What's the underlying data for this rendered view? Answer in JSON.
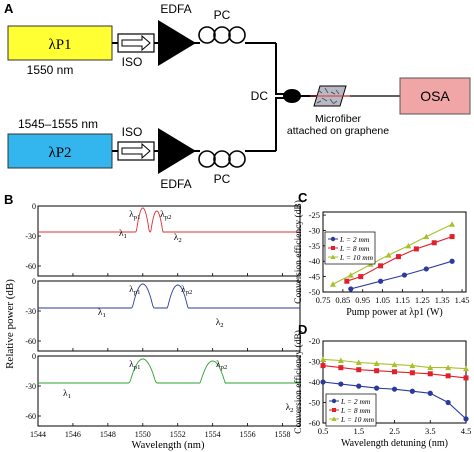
{
  "panel_a": {
    "label": "A",
    "laser1": {
      "name": "λP1",
      "wavelength": "1550 nm",
      "color": "#ffff33"
    },
    "laser2": {
      "name": "λP2",
      "wavelength": "1545–1555 nm",
      "color": "#33b6ee"
    },
    "iso_label": "ISO",
    "edfa_label": "EDFA",
    "pc_label": "PC",
    "dc_label": "DC",
    "microfiber_label_1": "Microfiber",
    "microfiber_label_2": "attached on graphene",
    "osa_label": "OSA",
    "osa_color": "#f0a6a6"
  },
  "panel_b": {
    "label": "B",
    "ylabel": "Relative power (dB)",
    "xlabel": "Wavelength (nm)",
    "xticks": [
      "1544",
      "1546",
      "1548",
      "1550",
      "1552",
      "1554",
      "1556",
      "1558"
    ],
    "yticks": [
      "0",
      "-30",
      "-60"
    ],
    "xlim": [
      1544,
      1559
    ],
    "ylim": [
      -70,
      0
    ],
    "spectra": [
      {
        "color": "#e03030",
        "peaks": [
          {
            "x": 1549.2,
            "y": -34,
            "w": 0.12,
            "label": "λ1"
          },
          {
            "x": 1550.0,
            "y": -2,
            "w": 0.1,
            "label": "λp1"
          },
          {
            "x": 1550.8,
            "y": -5,
            "w": 0.1,
            "label": "λp2"
          },
          {
            "x": 1551.6,
            "y": -38,
            "w": 0.12,
            "label": "λ2"
          }
        ]
      },
      {
        "color": "#2a3a9e",
        "peaks": [
          {
            "x": 1548.0,
            "y": -38,
            "w": 0.18,
            "label": "λ1"
          },
          {
            "x": 1550.0,
            "y": -3,
            "w": 0.16,
            "label": "λp1"
          },
          {
            "x": 1552.0,
            "y": -4,
            "w": 0.16,
            "label": "λp2"
          },
          {
            "x": 1554.0,
            "y": -48,
            "w": 0.18,
            "label": "λ2"
          }
        ]
      },
      {
        "color": "#2ca02c",
        "peaks": [
          {
            "x": 1546.0,
            "y": -44,
            "w": 0.22,
            "label": "λ1"
          },
          {
            "x": 1550.0,
            "y": -3,
            "w": 0.2,
            "label": "λp1"
          },
          {
            "x": 1554.0,
            "y": -5,
            "w": 0.2,
            "label": "λp2"
          },
          {
            "x": 1558.0,
            "y": -58,
            "w": 0.22,
            "label": "λ2"
          }
        ]
      }
    ]
  },
  "chart_data": [
    {
      "type": "line",
      "panel": "C",
      "xlabel": "Pump power at λp1 (W)",
      "ylabel": "Conversion efficiency (dB)",
      "xticks": [
        0.75,
        0.85,
        0.95,
        1.05,
        1.15,
        1.25,
        1.35,
        1.45
      ],
      "xlim": [
        0.75,
        1.47
      ],
      "yticks": [
        -25,
        -30,
        -35,
        -40,
        -45,
        -50
      ],
      "ylim": [
        -50,
        -24
      ],
      "series": [
        {
          "name": "L = 2 mm",
          "color": "#2a3a9e",
          "marker": "circle",
          "x": [
            0.89,
            1.04,
            1.16,
            1.27,
            1.4
          ],
          "y": [
            -49.0,
            -46.5,
            -44.5,
            -42.5,
            -40.0
          ]
        },
        {
          "name": "L = 8 mm",
          "color": "#e0202a",
          "marker": "square",
          "x": [
            0.87,
            0.94,
            1.04,
            1.13,
            1.22,
            1.31,
            1.4
          ],
          "y": [
            -46.5,
            -45.0,
            -41.5,
            -38.5,
            -36.0,
            -34.0,
            -32.0
          ]
        },
        {
          "name": "L = 10 mm",
          "color": "#a8c02a",
          "marker": "triangle",
          "x": [
            0.8,
            0.89,
            0.99,
            1.08,
            1.18,
            1.27,
            1.4
          ],
          "y": [
            -47.5,
            -44.5,
            -41.0,
            -38.0,
            -35.0,
            -32.0,
            -28.0
          ]
        }
      ]
    },
    {
      "type": "line",
      "panel": "D",
      "xlabel": "Wavelength detuning (nm)",
      "ylabel": "Conversion efficiency (dB)",
      "xticks": [
        0.5,
        1.5,
        2.5,
        3.5,
        4.5
      ],
      "xlim": [
        0.5,
        4.5
      ],
      "yticks": [
        -20,
        -30,
        -40,
        -50,
        -60
      ],
      "ylim": [
        -60,
        -20
      ],
      "series": [
        {
          "name": "L = 2 mm",
          "color": "#2a3a9e",
          "marker": "circle",
          "x": [
            0.5,
            1.0,
            1.5,
            2.0,
            2.5,
            3.0,
            3.5,
            4.0,
            4.5
          ],
          "y": [
            -40,
            -41,
            -42,
            -43,
            -43.5,
            -44.5,
            -45.5,
            -50,
            -58
          ]
        },
        {
          "name": "L = 8 mm",
          "color": "#e0202a",
          "marker": "square",
          "x": [
            0.5,
            1.0,
            1.5,
            2.0,
            2.5,
            3.0,
            3.5,
            4.0,
            4.5
          ],
          "y": [
            -32,
            -33,
            -34,
            -34.5,
            -35,
            -35.5,
            -36,
            -37,
            -38
          ]
        },
        {
          "name": "L = 10 mm",
          "color": "#a8c02a",
          "marker": "triangle",
          "x": [
            0.5,
            1.0,
            1.5,
            2.0,
            2.5,
            3.0,
            3.5,
            4.0,
            4.5
          ],
          "y": [
            -29,
            -29.5,
            -30.5,
            -31,
            -31.5,
            -32,
            -33,
            -33,
            -33.5
          ]
        }
      ]
    }
  ],
  "legend_text": {
    "L2": "L = 2 mm",
    "L8": "L = 8 mm",
    "L10": "L = 10 mm"
  },
  "panel_c_label": "C",
  "panel_d_label": "D"
}
